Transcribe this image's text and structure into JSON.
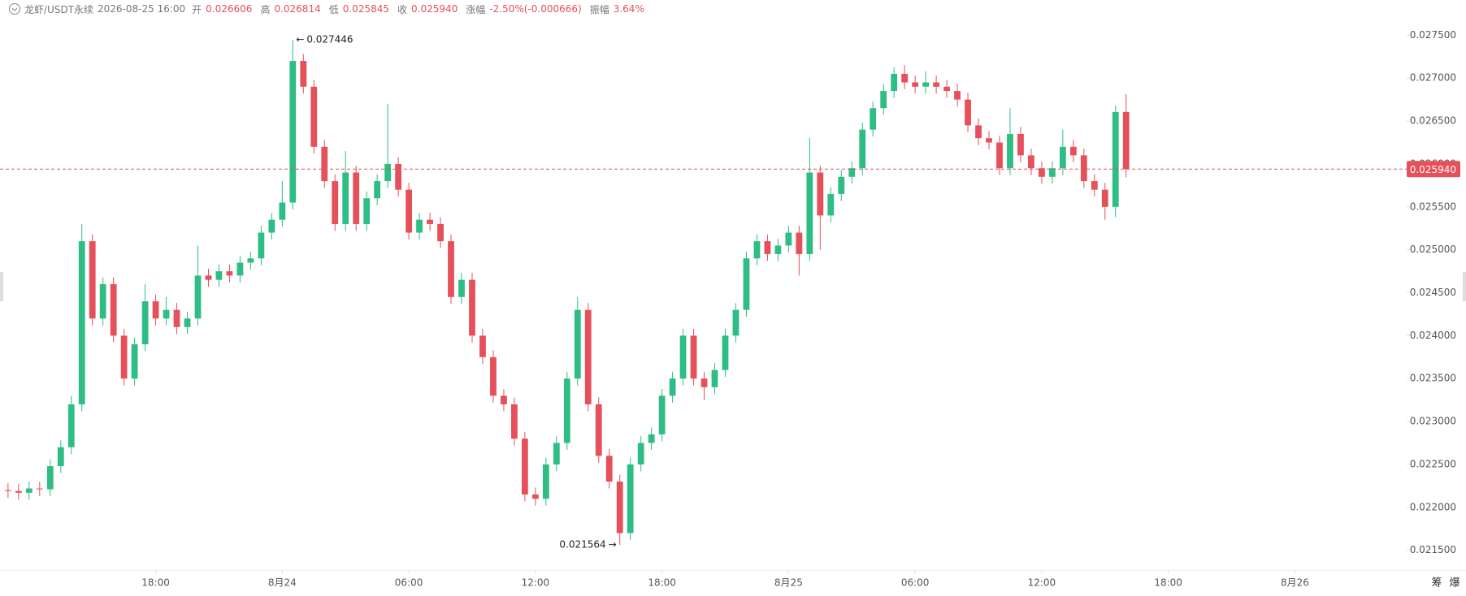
{
  "header": {
    "symbol": "龙虾/USDT永续",
    "time": "2026-08-25 16:00",
    "fields": [
      {
        "label": "开",
        "value": "0.026606"
      },
      {
        "label": "高",
        "value": "0.026814"
      },
      {
        "label": "低",
        "value": "0.025845"
      },
      {
        "label": "收",
        "value": "0.025940"
      },
      {
        "label": "涨幅",
        "value": "-2.50%(-0.000666)"
      },
      {
        "label": "振幅",
        "value": "3.64%"
      }
    ]
  },
  "tools": [
    "筹",
    "爆"
  ],
  "chart_data": {
    "type": "candlestick",
    "up_color": "#2ebd85",
    "down_color": "#e5505a",
    "xlim": [
      -0.76,
      132.6
    ],
    "xticks": [
      {
        "value": 14,
        "label": "18:00"
      },
      {
        "value": 26,
        "label": "8月24"
      },
      {
        "value": 38,
        "label": "06:00"
      },
      {
        "value": 50,
        "label": "12:00"
      },
      {
        "value": 62,
        "label": "18:00"
      },
      {
        "value": 74,
        "label": "8月25"
      },
      {
        "value": 86,
        "label": "06:00"
      },
      {
        "value": 98,
        "label": "12:00"
      },
      {
        "value": 110,
        "label": "18:00"
      },
      {
        "value": 122,
        "label": "8月26"
      }
    ],
    "ylim": [
      0.02127,
      0.02791
    ],
    "yticks": [
      {
        "value": 0.0215,
        "label": "0.021500"
      },
      {
        "value": 0.022,
        "label": "0.022000"
      },
      {
        "value": 0.0225,
        "label": "0.022500"
      },
      {
        "value": 0.023,
        "label": "0.023000"
      },
      {
        "value": 0.0235,
        "label": "0.023500"
      },
      {
        "value": 0.024,
        "label": "0.024000"
      },
      {
        "value": 0.0245,
        "label": "0.024500"
      },
      {
        "value": 0.025,
        "label": "0.025000"
      },
      {
        "value": 0.0255,
        "label": "0.025500"
      },
      {
        "value": 0.026,
        "label": "0.026000"
      },
      {
        "value": 0.0265,
        "label": "0.026500"
      },
      {
        "value": 0.027,
        "label": "0.027000"
      },
      {
        "value": 0.0275,
        "label": "0.027500"
      }
    ],
    "last_price": {
      "value": 0.02594,
      "label": "0.025940"
    },
    "max_price": 0.027446,
    "max_index": 27,
    "min_price": 0.021564,
    "min_index": 58,
    "open": [
      0.0222,
      0.02219,
      0.02217,
      0.02222,
      0.02221,
      0.02248,
      0.0227,
      0.0232,
      0.0251,
      0.0242,
      0.0246,
      0.024,
      0.0235,
      0.0239,
      0.0244,
      0.0242,
      0.0243,
      0.0241,
      0.0242,
      0.0247,
      0.02465,
      0.02475,
      0.0247,
      0.02485,
      0.0249,
      0.0252,
      0.02535,
      0.02555,
      0.0272,
      0.0269,
      0.0262,
      0.0258,
      0.0253,
      0.0259,
      0.0253,
      0.0256,
      0.0258,
      0.026,
      0.0257,
      0.0252,
      0.02535,
      0.0253,
      0.0251,
      0.02445,
      0.02465,
      0.024,
      0.02375,
      0.0233,
      0.0232,
      0.0228,
      0.02215,
      0.0221,
      0.0225,
      0.02275,
      0.0235,
      0.0243,
      0.0232,
      0.0226,
      0.0223,
      0.0217,
      0.0225,
      0.02275,
      0.02285,
      0.0233,
      0.0235,
      0.024,
      0.0235,
      0.0234,
      0.0236,
      0.024,
      0.0243,
      0.0249,
      0.0251,
      0.02495,
      0.02505,
      0.0252,
      0.02495,
      0.0259,
      0.0254,
      0.02565,
      0.02585,
      0.02595,
      0.0264,
      0.02665,
      0.02685,
      0.02705,
      0.02695,
      0.0269,
      0.02695,
      0.0269,
      0.02685,
      0.02675,
      0.02645,
      0.0263,
      0.02625,
      0.02595,
      0.02635,
      0.0261,
      0.02595,
      0.02585,
      0.02595,
      0.0262,
      0.0261,
      0.0258,
      0.0257,
      0.0255,
      0.026606
    ],
    "high": [
      0.02228,
      0.02227,
      0.0223,
      0.0223,
      0.02256,
      0.02278,
      0.0233,
      0.0253,
      0.02518,
      0.02468,
      0.02468,
      0.02408,
      0.02398,
      0.0246,
      0.02448,
      0.02445,
      0.02438,
      0.02428,
      0.02505,
      0.02478,
      0.02483,
      0.02483,
      0.02493,
      0.02498,
      0.02528,
      0.02543,
      0.0258,
      0.027446,
      0.02728,
      0.02698,
      0.02628,
      0.02588,
      0.02615,
      0.02598,
      0.02568,
      0.02588,
      0.0267,
      0.02608,
      0.02578,
      0.02543,
      0.02543,
      0.02538,
      0.02518,
      0.02473,
      0.02473,
      0.02408,
      0.02383,
      0.02338,
      0.02328,
      0.02288,
      0.02223,
      0.02258,
      0.02283,
      0.02358,
      0.02445,
      0.02438,
      0.02328,
      0.02268,
      0.02238,
      0.02258,
      0.02283,
      0.02293,
      0.02338,
      0.02358,
      0.02408,
      0.02408,
      0.02358,
      0.02368,
      0.02408,
      0.02438,
      0.02498,
      0.02518,
      0.02518,
      0.02513,
      0.02528,
      0.02528,
      0.0263,
      0.02598,
      0.02573,
      0.02593,
      0.02603,
      0.02648,
      0.02673,
      0.02693,
      0.02713,
      0.02715,
      0.02703,
      0.02708,
      0.02703,
      0.02698,
      0.02693,
      0.02683,
      0.02653,
      0.02638,
      0.02633,
      0.02665,
      0.02643,
      0.02618,
      0.02603,
      0.02603,
      0.0264,
      0.02628,
      0.02618,
      0.02588,
      0.02578,
      0.02668,
      0.026814
    ],
    "low": [
      0.02211,
      0.02209,
      0.02209,
      0.02213,
      0.02213,
      0.0224,
      0.02262,
      0.02312,
      0.02412,
      0.02412,
      0.02392,
      0.02342,
      0.02342,
      0.02382,
      0.02412,
      0.02412,
      0.02402,
      0.02402,
      0.02412,
      0.02457,
      0.02457,
      0.02462,
      0.02462,
      0.02477,
      0.02482,
      0.02512,
      0.02527,
      0.02547,
      0.02682,
      0.02612,
      0.02572,
      0.02522,
      0.02522,
      0.02522,
      0.02522,
      0.02552,
      0.02572,
      0.02562,
      0.02512,
      0.02512,
      0.02522,
      0.02502,
      0.02437,
      0.02437,
      0.02392,
      0.02367,
      0.02322,
      0.02312,
      0.02272,
      0.02207,
      0.02202,
      0.02202,
      0.02242,
      0.02267,
      0.02342,
      0.02312,
      0.02252,
      0.02222,
      0.021564,
      0.02162,
      0.02242,
      0.02267,
      0.02277,
      0.02322,
      0.02342,
      0.02342,
      0.02325,
      0.02332,
      0.02352,
      0.02392,
      0.02422,
      0.02482,
      0.02487,
      0.02487,
      0.02497,
      0.0247,
      0.02487,
      0.025,
      0.02532,
      0.02557,
      0.02577,
      0.02587,
      0.02632,
      0.02657,
      0.02677,
      0.02687,
      0.02682,
      0.02682,
      0.02682,
      0.02677,
      0.02667,
      0.02637,
      0.02622,
      0.02617,
      0.02587,
      0.02587,
      0.02602,
      0.02587,
      0.02577,
      0.02577,
      0.02587,
      0.02602,
      0.02572,
      0.02562,
      0.02535,
      0.02538,
      0.025845
    ],
    "close": [
      0.02219,
      0.02217,
      0.02222,
      0.02221,
      0.02248,
      0.0227,
      0.0232,
      0.0251,
      0.0242,
      0.0246,
      0.024,
      0.0235,
      0.0239,
      0.0244,
      0.0242,
      0.0243,
      0.0241,
      0.0242,
      0.0247,
      0.02465,
      0.02475,
      0.0247,
      0.02485,
      0.0249,
      0.0252,
      0.02535,
      0.02555,
      0.0272,
      0.0269,
      0.0262,
      0.0258,
      0.0253,
      0.0259,
      0.0253,
      0.0256,
      0.0258,
      0.026,
      0.0257,
      0.0252,
      0.02535,
      0.0253,
      0.0251,
      0.02445,
      0.02465,
      0.024,
      0.02375,
      0.0233,
      0.0232,
      0.0228,
      0.02215,
      0.0221,
      0.0225,
      0.02275,
      0.0235,
      0.0243,
      0.0232,
      0.0226,
      0.0223,
      0.0217,
      0.0225,
      0.02275,
      0.02285,
      0.0233,
      0.0235,
      0.024,
      0.0235,
      0.0234,
      0.0236,
      0.024,
      0.0243,
      0.0249,
      0.0251,
      0.02495,
      0.02505,
      0.0252,
      0.02495,
      0.0259,
      0.0254,
      0.02565,
      0.02585,
      0.02595,
      0.0264,
      0.02665,
      0.02685,
      0.02705,
      0.02695,
      0.0269,
      0.02695,
      0.0269,
      0.02685,
      0.02675,
      0.02645,
      0.0263,
      0.02625,
      0.02595,
      0.02635,
      0.0261,
      0.02595,
      0.02585,
      0.02595,
      0.0262,
      0.0261,
      0.0258,
      0.0257,
      0.0255,
      0.026606,
      0.02594
    ]
  }
}
